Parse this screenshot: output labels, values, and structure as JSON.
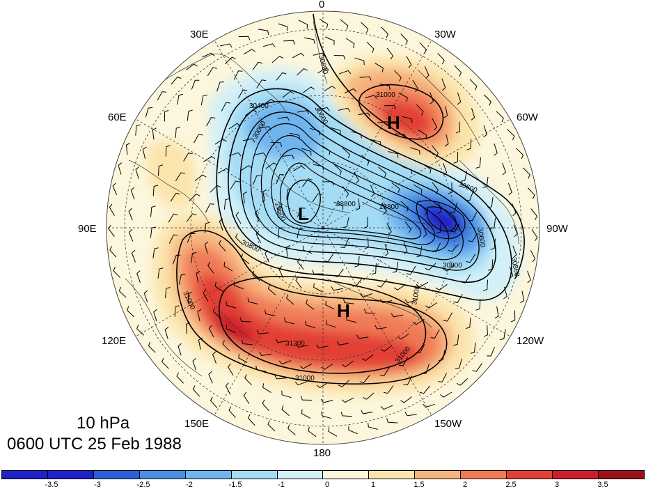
{
  "map": {
    "projection": "north polar stereographic",
    "level": "10 hPa",
    "valid_time": "0600 UTC 25 Feb 1988",
    "longitude_labels": [
      "0",
      "30W",
      "60W",
      "90W",
      "120W",
      "150W",
      "180",
      "150E",
      "120E",
      "90E",
      "60E",
      "30E"
    ],
    "contour_labels": [
      "31000",
      "30800",
      "30400",
      "30000",
      "30600",
      "29600",
      "28800",
      "28800",
      "30600",
      "30600",
      "30800",
      "30800",
      "31000",
      "31200",
      "31000",
      "31000",
      "31000",
      "30800"
    ],
    "centres": [
      {
        "letter": "H",
        "name": "high-north-atlantic"
      },
      {
        "letter": "L",
        "name": "low-polar"
      },
      {
        "letter": "H",
        "name": "high-north-pacific"
      }
    ]
  },
  "colorbar": {
    "tick_labels": [
      "-3.5",
      "-3",
      "-2.5",
      "-2",
      "-1.5",
      "-1",
      "0",
      "1",
      "1.5",
      "2",
      "2.5",
      "3",
      "3.5"
    ],
    "colors": [
      "#2020c8",
      "#2f5fd8",
      "#4a8ee4",
      "#6fb4ee",
      "#a3dcf4",
      "#d3f0f8",
      "#fcf6dc",
      "#fbe5ac",
      "#f6b47e",
      "#f07a56",
      "#e24036",
      "#c81f2c",
      "#9b111c"
    ]
  }
}
